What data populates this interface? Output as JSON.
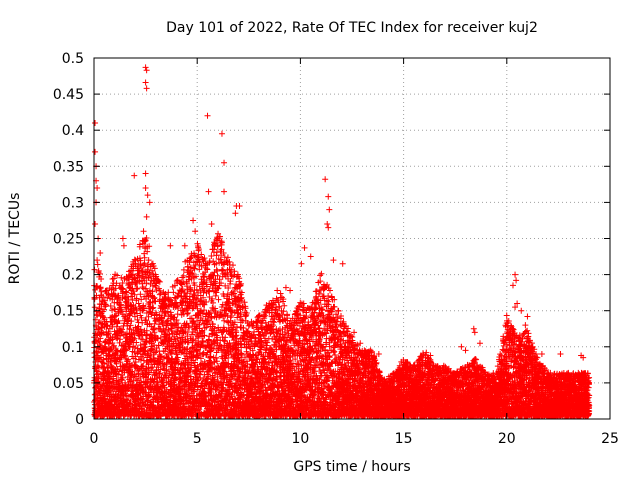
{
  "chart_data": {
    "type": "scatter",
    "title": "Day 101 of 2022, Rate Of TEC Index for receiver kuj2",
    "xlabel": "GPS time / hours",
    "ylabel": "ROTI / TECUs",
    "xlim": [
      0,
      25
    ],
    "ylim": [
      0,
      0.5
    ],
    "xticks": [
      0,
      5,
      10,
      15,
      20,
      25
    ],
    "yticks": [
      0,
      0.05,
      0.1,
      0.15,
      0.2,
      0.25,
      0.3,
      0.35,
      0.4,
      0.45,
      0.5
    ],
    "xtick_labels": [
      "0",
      "5",
      "10",
      "15",
      "20",
      "25"
    ],
    "ytick_labels": [
      "0",
      "0.05",
      "0.1",
      "0.15",
      "0.2",
      "0.25",
      "0.3",
      "0.35",
      "0.4",
      "0.45",
      "0.5"
    ],
    "grid": true,
    "marker": "+",
    "color": "#ff0000",
    "envelope_hours": [
      0,
      0.2,
      0.5,
      1,
      1.5,
      2,
      2.5,
      3,
      3.5,
      4,
      4.5,
      5,
      5.5,
      6,
      6.5,
      7,
      7.5,
      8,
      8.5,
      9,
      9.5,
      10,
      10.5,
      11,
      11.5,
      12,
      12.5,
      13,
      13.5,
      14,
      14.5,
      15,
      15.5,
      16,
      16.5,
      17,
      17.5,
      18,
      18.5,
      19,
      19.5,
      20,
      20.5,
      21,
      21.5,
      22,
      22.5,
      23,
      23.5,
      24
    ],
    "envelope_roti": [
      0.2,
      0.22,
      0.17,
      0.2,
      0.19,
      0.22,
      0.26,
      0.2,
      0.17,
      0.19,
      0.22,
      0.24,
      0.21,
      0.26,
      0.22,
      0.2,
      0.13,
      0.14,
      0.16,
      0.18,
      0.13,
      0.16,
      0.15,
      0.2,
      0.17,
      0.14,
      0.11,
      0.09,
      0.09,
      0.05,
      0.06,
      0.08,
      0.07,
      0.09,
      0.07,
      0.07,
      0.06,
      0.07,
      0.08,
      0.06,
      0.06,
      0.14,
      0.11,
      0.12,
      0.08,
      0.06,
      0.06,
      0.06,
      0.06,
      0.06
    ],
    "points": [
      [
        0.05,
        0.41
      ],
      [
        0.05,
        0.37
      ],
      [
        0.1,
        0.35
      ],
      [
        0.1,
        0.33
      ],
      [
        0.15,
        0.32
      ],
      [
        0.1,
        0.3
      ],
      [
        0.05,
        0.27
      ],
      [
        0.2,
        0.25
      ],
      [
        0.3,
        0.23
      ],
      [
        0.15,
        0.22
      ],
      [
        2.5,
        0.487
      ],
      [
        2.55,
        0.483
      ],
      [
        2.5,
        0.466
      ],
      [
        2.55,
        0.458
      ],
      [
        2.5,
        0.34
      ],
      [
        2.5,
        0.32
      ],
      [
        2.6,
        0.31
      ],
      [
        2.55,
        0.28
      ],
      [
        2.7,
        0.3
      ],
      [
        2.4,
        0.26
      ],
      [
        1.95,
        0.337
      ],
      [
        1.4,
        0.25
      ],
      [
        1.45,
        0.24
      ],
      [
        5.5,
        0.42
      ],
      [
        6.2,
        0.395
      ],
      [
        6.3,
        0.355
      ],
      [
        5.55,
        0.315
      ],
      [
        6.3,
        0.315
      ],
      [
        6.9,
        0.295
      ],
      [
        7.05,
        0.295
      ],
      [
        6.85,
        0.285
      ],
      [
        5.7,
        0.27
      ],
      [
        6.0,
        0.25
      ],
      [
        4.8,
        0.275
      ],
      [
        4.9,
        0.26
      ],
      [
        3.7,
        0.24
      ],
      [
        4.4,
        0.24
      ],
      [
        11.2,
        0.332
      ],
      [
        11.35,
        0.308
      ],
      [
        11.4,
        0.29
      ],
      [
        11.3,
        0.27
      ],
      [
        11.35,
        0.265
      ],
      [
        10.2,
        0.237
      ],
      [
        10.5,
        0.225
      ],
      [
        11.6,
        0.22
      ],
      [
        12.05,
        0.215
      ],
      [
        10.05,
        0.215
      ],
      [
        9.3,
        0.182
      ],
      [
        9.5,
        0.178
      ],
      [
        20.4,
        0.2
      ],
      [
        20.45,
        0.192
      ],
      [
        20.3,
        0.185
      ],
      [
        20.5,
        0.16
      ],
      [
        20.4,
        0.155
      ],
      [
        20.7,
        0.15
      ],
      [
        21.0,
        0.142
      ],
      [
        20.9,
        0.13
      ],
      [
        18.4,
        0.125
      ],
      [
        18.45,
        0.12
      ],
      [
        18.7,
        0.105
      ],
      [
        17.8,
        0.1
      ],
      [
        18.0,
        0.095
      ],
      [
        23.6,
        0.088
      ],
      [
        23.7,
        0.085
      ],
      [
        22.6,
        0.09
      ],
      [
        21.7,
        0.09
      ],
      [
        16.1,
        0.092
      ],
      [
        16.3,
        0.088
      ],
      [
        13.1,
        0.095
      ],
      [
        13.4,
        0.095
      ],
      [
        13.8,
        0.09
      ],
      [
        12.3,
        0.115
      ],
      [
        12.6,
        0.12
      ],
      [
        12.9,
        0.105
      ]
    ]
  }
}
